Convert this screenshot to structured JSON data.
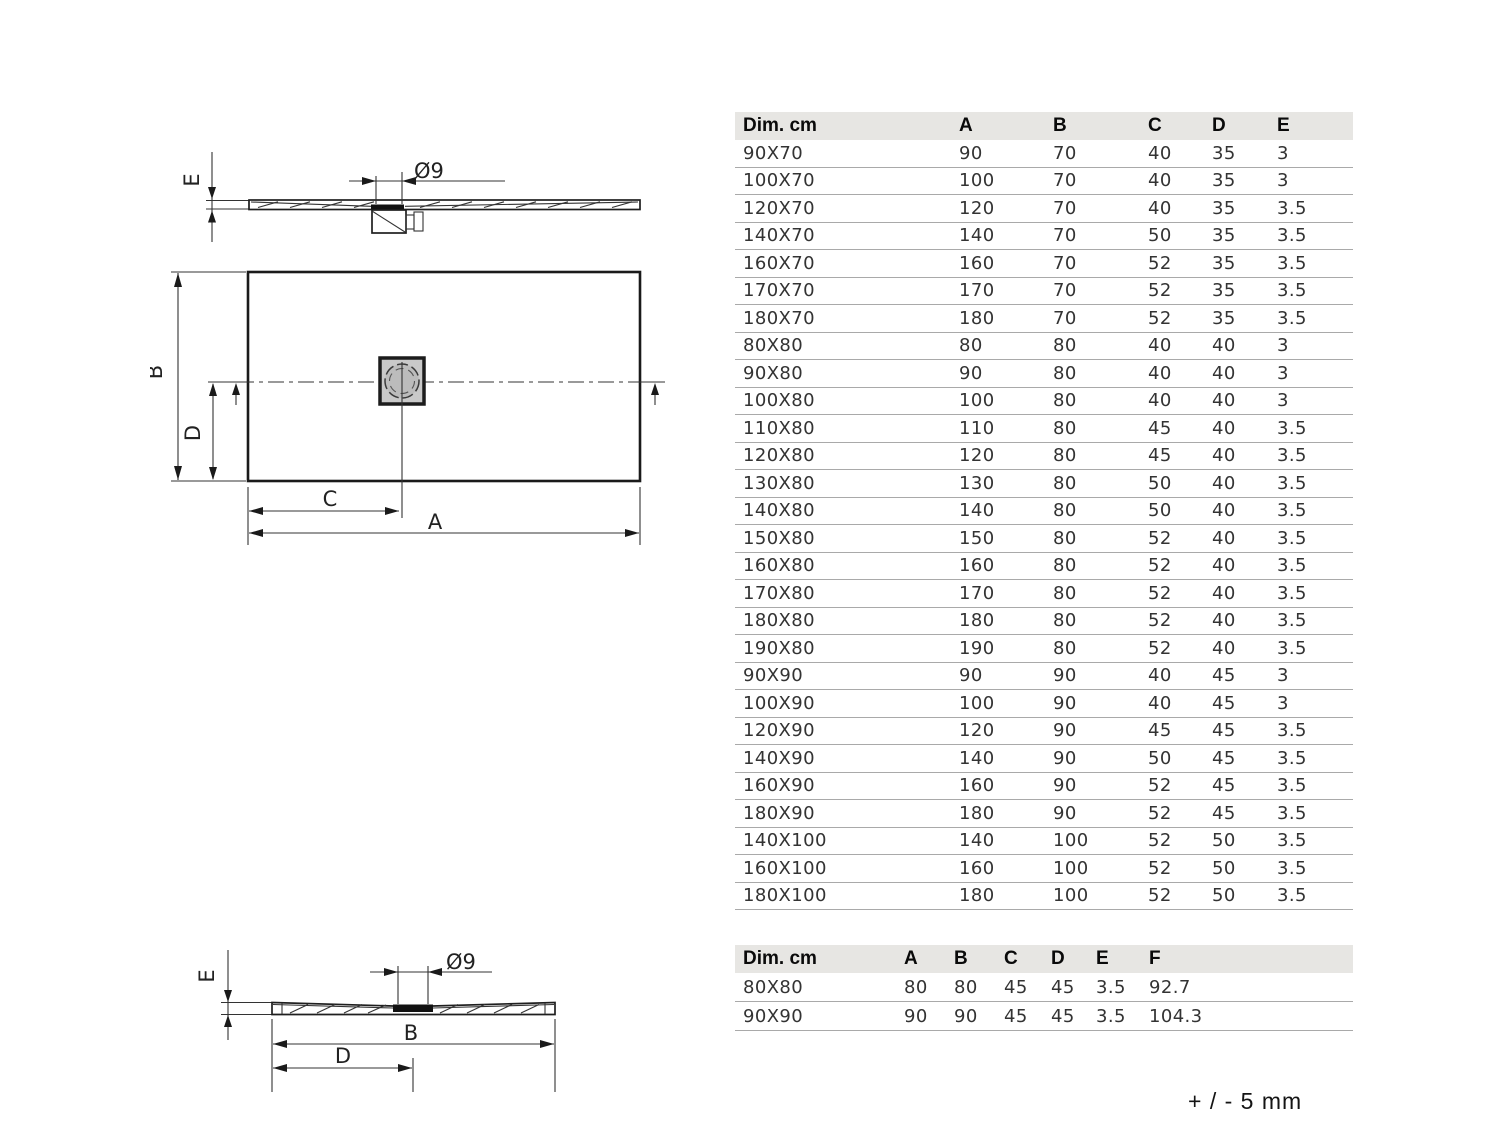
{
  "drawing_labels": {
    "a": "A",
    "b": "B",
    "c": "C",
    "d": "D",
    "e": "E",
    "diameter": "Ø9"
  },
  "table_main": {
    "headers": [
      "Dim. cm",
      "A",
      "B",
      "C",
      "D",
      "E"
    ],
    "rows": [
      [
        "90X70",
        "90",
        "70",
        "40",
        "35",
        "3"
      ],
      [
        "100X70",
        "100",
        "70",
        "40",
        "35",
        "3"
      ],
      [
        "120X70",
        "120",
        "70",
        "40",
        "35",
        "3.5"
      ],
      [
        "140X70",
        "140",
        "70",
        "50",
        "35",
        "3.5"
      ],
      [
        "160X70",
        "160",
        "70",
        "52",
        "35",
        "3.5"
      ],
      [
        "170X70",
        "170",
        "70",
        "52",
        "35",
        "3.5"
      ],
      [
        "180X70",
        "180",
        "70",
        "52",
        "35",
        "3.5"
      ],
      [
        "80X80",
        "80",
        "80",
        "40",
        "40",
        "3"
      ],
      [
        "90X80",
        "90",
        "80",
        "40",
        "40",
        "3"
      ],
      [
        "100X80",
        "100",
        "80",
        "40",
        "40",
        "3"
      ],
      [
        "110X80",
        "110",
        "80",
        "45",
        "40",
        "3.5"
      ],
      [
        "120X80",
        "120",
        "80",
        "45",
        "40",
        "3.5"
      ],
      [
        "130X80",
        "130",
        "80",
        "50",
        "40",
        "3.5"
      ],
      [
        "140X80",
        "140",
        "80",
        "50",
        "40",
        "3.5"
      ],
      [
        "150X80",
        "150",
        "80",
        "52",
        "40",
        "3.5"
      ],
      [
        "160X80",
        "160",
        "80",
        "52",
        "40",
        "3.5"
      ],
      [
        "170X80",
        "170",
        "80",
        "52",
        "40",
        "3.5"
      ],
      [
        "180X80",
        "180",
        "80",
        "52",
        "40",
        "3.5"
      ],
      [
        "190X80",
        "190",
        "80",
        "52",
        "40",
        "3.5"
      ],
      [
        "90X90",
        "90",
        "90",
        "40",
        "45",
        "3"
      ],
      [
        "100X90",
        "100",
        "90",
        "40",
        "45",
        "3"
      ],
      [
        "120X90",
        "120",
        "90",
        "45",
        "45",
        "3.5"
      ],
      [
        "140X90",
        "140",
        "90",
        "50",
        "45",
        "3.5"
      ],
      [
        "160X90",
        "160",
        "90",
        "52",
        "45",
        "3.5"
      ],
      [
        "180X90",
        "180",
        "90",
        "52",
        "45",
        "3.5"
      ],
      [
        "140X100",
        "140",
        "100",
        "52",
        "50",
        "3.5"
      ],
      [
        "160X100",
        "160",
        "100",
        "52",
        "50",
        "3.5"
      ],
      [
        "180X100",
        "180",
        "100",
        "52",
        "50",
        "3.5"
      ]
    ]
  },
  "table_square": {
    "headers": [
      "Dim. cm",
      "A",
      "B",
      "C",
      "D",
      "E",
      "F"
    ],
    "rows": [
      [
        "80X80",
        "80",
        "80",
        "45",
        "45",
        "3.5",
        "92.7"
      ],
      [
        "90X90",
        "90",
        "90",
        "45",
        "45",
        "3.5",
        "104.3"
      ]
    ]
  },
  "tolerance_note": "+ / -  5 mm",
  "colors": {
    "header_bg": "#e7e6e3",
    "row_line": "#a9a9a9",
    "line": "#1a1a1a",
    "drain_fill": "#c9c9c9"
  }
}
